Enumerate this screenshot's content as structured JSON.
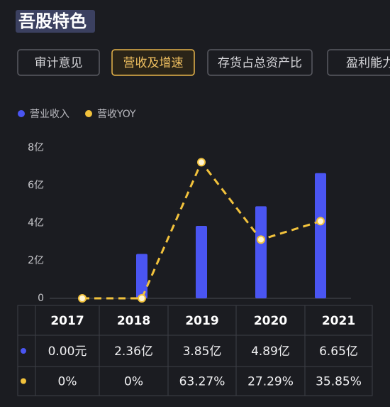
{
  "header": {
    "title": "吾股特色"
  },
  "tabs": [
    "审计意见",
    "营收及增速",
    "存货占总资产比",
    "盈利能力"
  ],
  "active_tab": 1,
  "chart_data": {
    "type": "bar",
    "categories": [
      "2017",
      "2018",
      "2019",
      "2020",
      "2021"
    ],
    "series": [
      {
        "name": "营业收入",
        "color": "#4a55f2",
        "values": [
          0,
          2.36,
          3.85,
          4.89,
          6.65
        ],
        "value_labels": [
          "0.00元",
          "2.36亿",
          "3.85亿",
          "4.89亿",
          "6.65亿"
        ]
      },
      {
        "name": "营收YOY",
        "color": "#f2c23c",
        "type": "line",
        "axis": "y2",
        "values": [
          0,
          0,
          63.27,
          27.29,
          35.85
        ],
        "value_labels": [
          "0%",
          "0%",
          "63.27%",
          "27.29%",
          "35.85%"
        ]
      }
    ],
    "ylim": [
      0,
      8
    ],
    "yticks": [
      0,
      {
        "value": 2,
        "label": "2亿"
      },
      {
        "value": 4,
        "label": "4亿"
      },
      {
        "value": 6,
        "label": "6亿"
      },
      {
        "value": 8,
        "label": "8亿"
      }
    ],
    "y2lim": [
      0,
      70
    ],
    "grid": false
  }
}
